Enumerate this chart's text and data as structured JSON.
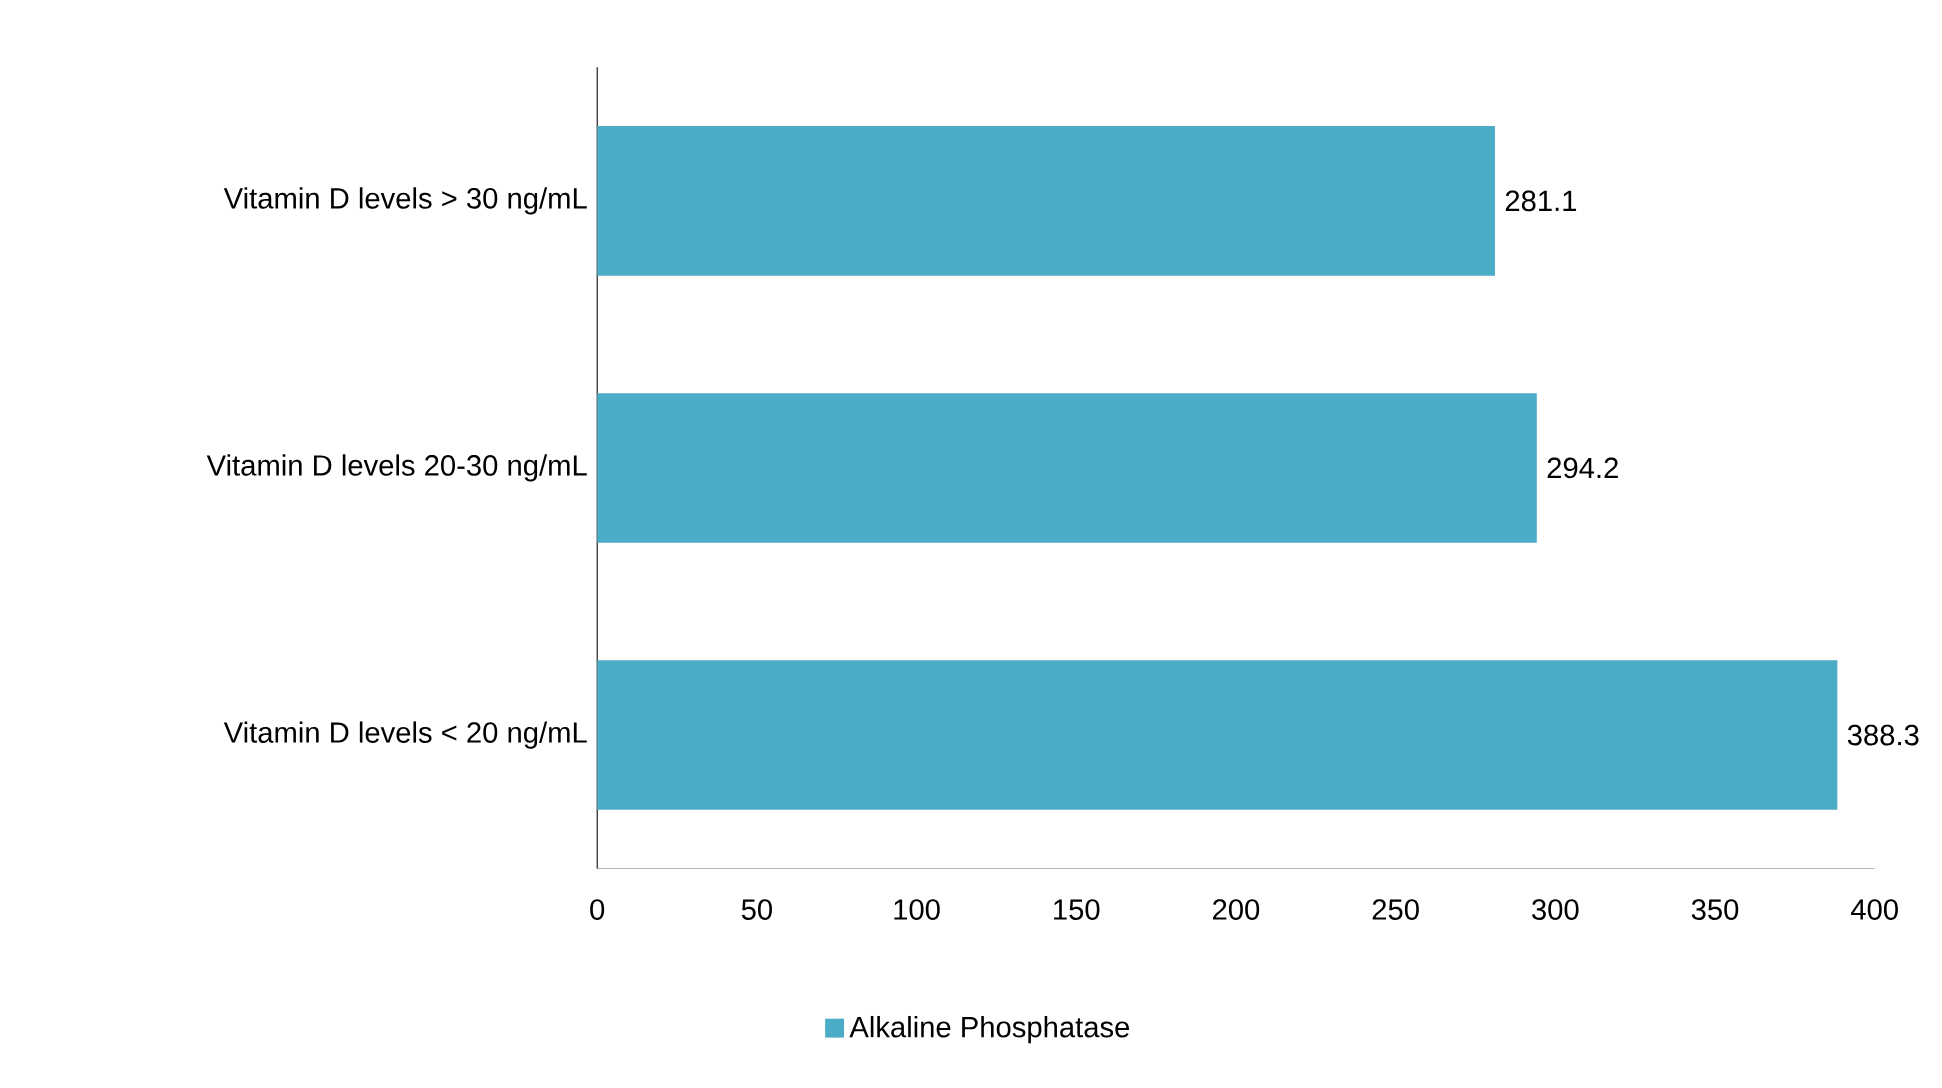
{
  "chart_data": {
    "type": "bar",
    "orientation": "horizontal",
    "categories": [
      "Vitamin D levels > 30 ng/mL",
      "Vitamin D levels 20-30 ng/mL",
      "Vitamin D levels < 20 ng/mL"
    ],
    "series": [
      {
        "name": "Alkaline Phosphatase",
        "color": "#4bacc6",
        "values": [
          281.1,
          294.2,
          388.3
        ]
      }
    ],
    "xlim": [
      0,
      400
    ],
    "xticks": [
      0,
      50,
      100,
      150,
      200,
      250,
      300,
      350,
      400
    ],
    "data_labels": true,
    "legend": "bottom",
    "grid": false
  }
}
